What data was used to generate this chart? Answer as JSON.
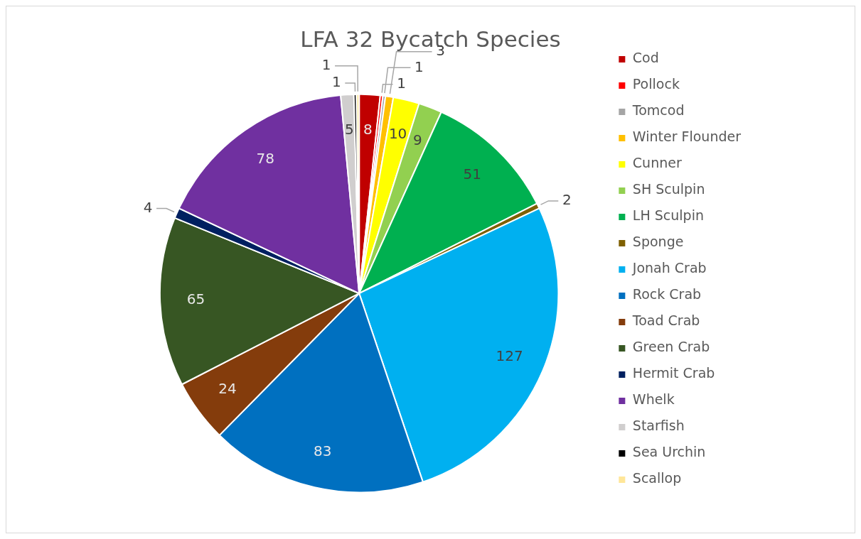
{
  "chart_data": {
    "type": "pie",
    "title": "LFA 32 Bycatch Species",
    "categories": [
      "Cod",
      "Pollock",
      "Tomcod",
      "Winter Flounder",
      "Cunner",
      "SH Sculpin",
      "LH Sculpin",
      "Sponge",
      "Jonah Crab",
      "Rock Crab",
      "Toad Crab",
      "Green Crab",
      "Hermit Crab",
      "Whelk",
      "Starfish",
      "Sea Urchin",
      "Scallop"
    ],
    "values": [
      8,
      1,
      1,
      3,
      10,
      9,
      51,
      2,
      127,
      83,
      24,
      65,
      4,
      78,
      5,
      1,
      1
    ],
    "colors": [
      "#c00000",
      "#ff0000",
      "#a5a5a5",
      "#ffc000",
      "#ffff00",
      "#92d050",
      "#00b050",
      "#7f6000",
      "#00b0f0",
      "#0070c0",
      "#843c0c",
      "#375623",
      "#002060",
      "#7030a0",
      "#d0cece",
      "#000000",
      "#ffe699"
    ],
    "data_labels": true,
    "legend": "right"
  }
}
